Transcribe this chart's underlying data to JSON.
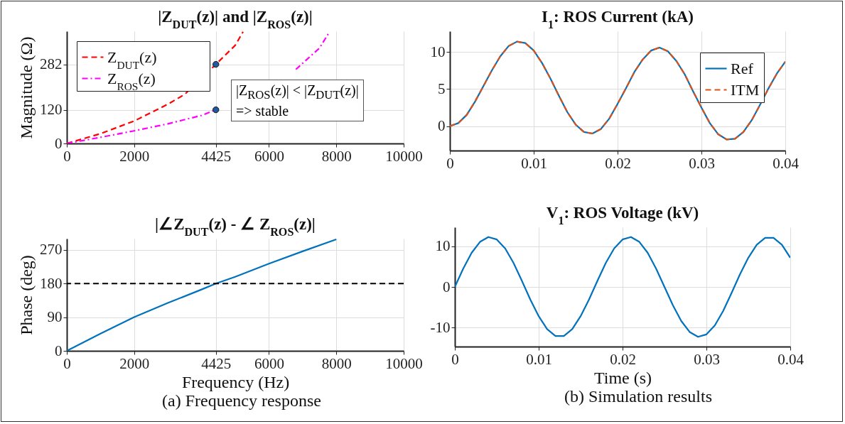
{
  "chart_data": [
    {
      "type": "line",
      "title": "|Z$_{DUT}$(z)| and |Z$_{ROS}$(z)|",
      "ylabel": "Magnitude (Ω)",
      "xlim": [
        0,
        10000
      ],
      "xticks": [
        0,
        2000,
        4425,
        6000,
        8000,
        10000
      ],
      "ylim": [
        0,
        400
      ],
      "yticks": [
        0,
        120,
        282
      ],
      "grid": true,
      "legend": "top left",
      "annotations": [
        "|Z$_{ROS}$(z)| < |Z$_{DUT}$(z)|",
        "=> stable"
      ],
      "series": [
        {
          "name": "Z$_{DUT}$(z)",
          "color": "#ff0000",
          "line_style": "dashed",
          "x": [
            0,
            1000,
            2000,
            3000,
            3500,
            4425,
            5000,
            5232
          ],
          "values": [
            0,
            35,
            80,
            140,
            175,
            282,
            350,
            398
          ]
        },
        {
          "name": "Z$_{ROS}$(z)",
          "color": "#ff00ff",
          "line_style": "dashdot",
          "x": [
            0,
            1000,
            2000,
            3000,
            4000,
            4425,
            5000,
            6000,
            6800,
            7500,
            7800
          ],
          "values": [
            0,
            22,
            45,
            70,
            100,
            120,
            null,
            null,
            264,
            340,
            398
          ]
        },
        {
          "type": "scatter",
          "color": "#1f5aa0",
          "marker": "circle",
          "x": [
            4425,
            4425
          ],
          "values": [
            282,
            120
          ]
        }
      ]
    },
    {
      "type": "line",
      "title": "|∠Z$_{DUT}$(z) - ∠ Z$_{ROS}$(z)|",
      "xlabel": "Frequency (Hz)",
      "ylabel": "Phase (deg)",
      "xlim": [
        0,
        10000
      ],
      "xticks": [
        0,
        2000,
        4425,
        6000,
        8000,
        10000
      ],
      "ylim": [
        0,
        300
      ],
      "yticks": [
        0,
        90,
        180,
        270
      ],
      "grid": true,
      "ref_lines": [
        {
          "axis": "y",
          "value": 180,
          "color": "#000000",
          "line_style": "dashed"
        }
      ],
      "annotations": [
        "(a) Frequency response"
      ],
      "series": [
        {
          "color": "#0072bd",
          "x": [
            0,
            1000,
            2000,
            3000,
            4000,
            4425,
            5000,
            6000,
            7000,
            8000
          ],
          "values": [
            0,
            46,
            90,
            128,
            164,
            180,
            198,
            233,
            266,
            298
          ]
        }
      ]
    },
    {
      "type": "line",
      "title": "I$_{1}$: ROS Current (kA)",
      "xlim": [
        0,
        0.04
      ],
      "xticks": [
        0,
        0.01,
        0.02,
        0.03,
        0.04
      ],
      "ylim": [
        -3.3,
        12.8
      ],
      "yticks": [
        0,
        5,
        10
      ],
      "grid": true,
      "legend": "top right",
      "x": [
        0,
        0.001,
        0.002,
        0.003,
        0.004,
        0.005,
        0.006,
        0.007,
        0.008,
        0.009,
        0.01,
        0.011,
        0.012,
        0.013,
        0.014,
        0.015,
        0.016,
        0.017,
        0.018,
        0.019,
        0.02,
        0.021,
        0.022,
        0.023,
        0.024,
        0.025,
        0.026,
        0.027,
        0.028,
        0.029,
        0.03,
        0.031,
        0.032,
        0.033,
        0.034,
        0.035,
        0.036,
        0.037,
        0.038,
        0.039,
        0.04
      ],
      "series": [
        {
          "name": "Ref",
          "color": "#0072bd",
          "line_style": "solid",
          "values": [
            0,
            0.4,
            1.5,
            3.3,
            5.4,
            7.5,
            9.4,
            10.8,
            11.4,
            11.2,
            10.2,
            8.5,
            6.4,
            4.1,
            1.9,
            0.2,
            -0.8,
            -1.0,
            -0.4,
            1.0,
            3.0,
            5.1,
            7.3,
            9.0,
            10.2,
            10.6,
            10.1,
            8.8,
            7.0,
            4.7,
            2.5,
            0.4,
            -1.1,
            -1.8,
            -1.7,
            -0.8,
            0.8,
            2.9,
            5.1,
            7.1,
            8.7
          ]
        },
        {
          "name": "ITM",
          "color": "#d95319",
          "line_style": "dashed",
          "values": [
            0,
            0.4,
            1.5,
            3.3,
            5.4,
            7.5,
            9.4,
            10.8,
            11.4,
            11.2,
            10.2,
            8.5,
            6.4,
            4.1,
            1.9,
            0.2,
            -0.8,
            -1.0,
            -0.4,
            1.0,
            3.0,
            5.1,
            7.3,
            9.0,
            10.2,
            10.6,
            10.1,
            8.8,
            7.0,
            4.7,
            2.5,
            0.4,
            -1.1,
            -1.8,
            -1.7,
            -0.8,
            0.8,
            2.9,
            5.1,
            7.1,
            8.7
          ]
        }
      ]
    },
    {
      "type": "line",
      "title": "V$_{1}$: ROS Voltage (kV)",
      "xlabel": "Time (s)",
      "xlim": [
        0,
        0.04
      ],
      "xticks": [
        0,
        0.01,
        0.02,
        0.03,
        0.04
      ],
      "ylim": [
        -14.7,
        14.7
      ],
      "yticks": [
        -10,
        0,
        10
      ],
      "grid": true,
      "annotations": [
        "(b) Simulation results"
      ],
      "x": [
        0,
        0.001,
        0.002,
        0.003,
        0.004,
        0.005,
        0.006,
        0.007,
        0.008,
        0.009,
        0.01,
        0.011,
        0.012,
        0.013,
        0.014,
        0.015,
        0.016,
        0.017,
        0.018,
        0.019,
        0.02,
        0.021,
        0.022,
        0.023,
        0.024,
        0.025,
        0.026,
        0.027,
        0.028,
        0.029,
        0.03,
        0.031,
        0.032,
        0.033,
        0.034,
        0.035,
        0.036,
        0.037,
        0.038,
        0.039,
        0.04
      ],
      "series": [
        {
          "color": "#0072bd",
          "values": [
            0,
            4.5,
            8.4,
            11.1,
            12.3,
            11.7,
            9.5,
            5.9,
            1.5,
            -3.1,
            -7.2,
            -10.4,
            -12.1,
            -12.1,
            -10.4,
            -7.2,
            -3.1,
            1.5,
            5.9,
            9.5,
            11.7,
            12.3,
            11.1,
            8.4,
            4.5,
            0,
            -4.5,
            -8.4,
            -11.1,
            -12.3,
            -11.7,
            -9.5,
            -5.9,
            -1.5,
            3.1,
            7.2,
            10.4,
            12.1,
            12.1,
            10.4,
            7.2
          ]
        }
      ]
    }
  ]
}
